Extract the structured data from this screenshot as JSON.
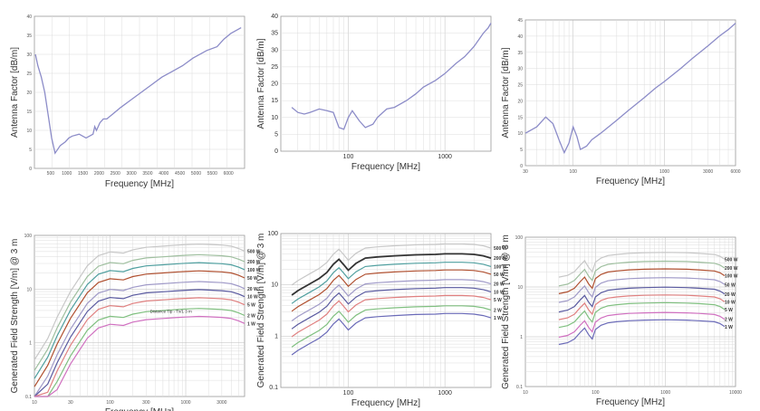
{
  "chart_data": [
    {
      "id": "af1",
      "type": "line",
      "ylabel": "Antenna Factor [dB/m]",
      "xlabel": "Frequency [MHz]",
      "xscale": "linear",
      "xlim": [
        0,
        6100
      ],
      "ylim": [
        0,
        40
      ],
      "yticks": [
        "0",
        "5",
        "10",
        "15",
        "20",
        "25",
        "30",
        "35",
        "40"
      ],
      "xticks": [
        "",
        "500",
        "1000",
        "1500",
        "2000",
        "2500",
        "3000",
        "3500",
        "4000",
        "4500",
        "5000",
        "5500",
        "6000"
      ],
      "grid": true,
      "series": [
        {
          "color": "#8c8cc8",
          "x": [
            30,
            100,
            200,
            300,
            400,
            500,
            600,
            750,
            900,
            1000,
            1100,
            1300,
            1500,
            1700,
            1750,
            1800,
            1900,
            2000,
            2100,
            2300,
            2500,
            2800,
            3100,
            3400,
            3700,
            4000,
            4300,
            4600,
            5000,
            5300,
            5500,
            5700,
            5900,
            6000
          ],
          "y": [
            30,
            27,
            24,
            20,
            14,
            8,
            4,
            6,
            7,
            8,
            8.5,
            9,
            8,
            9,
            11,
            10,
            12,
            13,
            13,
            14.5,
            16,
            18,
            20,
            22,
            24,
            25.5,
            27,
            29,
            31,
            32,
            34,
            35.5,
            36.5,
            37
          ]
        }
      ]
    },
    {
      "id": "af2",
      "type": "line",
      "ylabel": "Antenna Factor [dB/m]",
      "xlabel": "Frequency [MHz]",
      "xscale": "log",
      "xlim": [
        20,
        3000
      ],
      "ylim": [
        0,
        40
      ],
      "yticks": [
        "0",
        "5",
        "10",
        "15",
        "20",
        "25",
        "30",
        "35",
        "40"
      ],
      "xticks": [
        "100",
        "1000"
      ],
      "grid": true,
      "series": [
        {
          "color": "#8c8cc8",
          "x": [
            26,
            30,
            35,
            40,
            50,
            60,
            70,
            80,
            90,
            100,
            110,
            130,
            150,
            180,
            200,
            250,
            300,
            400,
            500,
            600,
            800,
            1000,
            1300,
            1600,
            2000,
            2500,
            2800,
            3000
          ],
          "y": [
            13,
            11.5,
            11,
            11.5,
            12.5,
            12,
            11.5,
            7,
            6.5,
            10,
            12,
            9,
            7,
            8,
            10,
            12.5,
            13,
            15,
            17,
            19,
            21,
            23,
            26,
            28,
            31,
            35,
            36.5,
            38
          ]
        }
      ]
    },
    {
      "id": "af3",
      "type": "line",
      "ylabel": "Antenna Factor [dB/m]",
      "xlabel": "Frequency [MHz]",
      "xscale": "log",
      "xlim": [
        30,
        6000
      ],
      "ylim": [
        0,
        45
      ],
      "yticks": [
        "0",
        "5",
        "10",
        "15",
        "20",
        "25",
        "30",
        "35",
        "40",
        "45"
      ],
      "xticks": [
        "30",
        "100",
        "1000",
        "3000",
        "6000"
      ],
      "grid": true,
      "series": [
        {
          "color": "#8c8cc8",
          "x": [
            30,
            40,
            50,
            60,
            70,
            80,
            90,
            100,
            110,
            120,
            140,
            160,
            200,
            300,
            400,
            600,
            800,
            1000,
            1500,
            2000,
            3000,
            4000,
            5000,
            6000
          ],
          "y": [
            10,
            12,
            15,
            13,
            8,
            4,
            7,
            12,
            9,
            5,
            6,
            8,
            10,
            14,
            17,
            21,
            24,
            26,
            30,
            33,
            37,
            40,
            42,
            44
          ]
        }
      ]
    },
    {
      "id": "fs1",
      "type": "line",
      "ylabel": "Generated Field Strength [V/m] @ 3 m",
      "xlabel": "Frequency [MHz]",
      "xscale": "log",
      "yscale": "log",
      "xlim": [
        10,
        6000
      ],
      "ylim": [
        0.1,
        100
      ],
      "yticks": [
        "0.1",
        "1",
        "10",
        "100"
      ],
      "xticks": [
        "10",
        "30",
        "100",
        "300",
        "1000",
        "3000"
      ],
      "grid": true,
      "annotation": "Distance Tip - Tx/1 3 m",
      "series": [
        {
          "name": "500 W",
          "color": "#c8c8c8",
          "y_mid": 60
        },
        {
          "name": "200 W",
          "color": "#9fbf9f",
          "y_mid": 38
        },
        {
          "name": "100 W",
          "color": "#4f9f9f",
          "y_mid": 27
        },
        {
          "name": "50 W",
          "color": "#b05030",
          "y_mid": 19
        },
        {
          "name": "20 W",
          "color": "#a09ac8",
          "y_mid": 12
        },
        {
          "name": "10 W",
          "color": "#5a5aa0",
          "y_mid": 8.5
        },
        {
          "name": "5 W",
          "color": "#e08080",
          "y_mid": 6
        },
        {
          "name": "2 W",
          "color": "#80c080",
          "y_mid": 3.8
        },
        {
          "name": "1 W",
          "color": "#d070c0",
          "y_mid": 2.7
        }
      ]
    },
    {
      "id": "fs2",
      "type": "line",
      "ylabel": "Generated Field Strength [V/m] @ 3 m",
      "xlabel": "Frequency [MHz]",
      "xscale": "log",
      "yscale": "log",
      "xlim": [
        20,
        3000
      ],
      "ylim": [
        0.1,
        100
      ],
      "yticks": [
        "0.1",
        "1",
        "10",
        "100"
      ],
      "xticks": [
        "100",
        "1000"
      ],
      "grid": true,
      "series": [
        {
          "name": "500 W",
          "color": "#c8c8c8",
          "y_mid": 55
        },
        {
          "name": "200 W",
          "color": "#333333",
          "y_mid": 35
        },
        {
          "name": "100 W",
          "color": "#4f9f9f",
          "y_mid": 24
        },
        {
          "name": "50 W",
          "color": "#b05030",
          "y_mid": 17
        },
        {
          "name": "20 W",
          "color": "#a09ac8",
          "y_mid": 11
        },
        {
          "name": "10 W",
          "color": "#5a5aa0",
          "y_mid": 7.7
        },
        {
          "name": "5 W",
          "color": "#e08080",
          "y_mid": 5.4
        },
        {
          "name": "2 W",
          "color": "#80c080",
          "y_mid": 3.4
        },
        {
          "name": "1 W",
          "color": "#6a6ab8",
          "y_mid": 2.4
        }
      ]
    },
    {
      "id": "fs3",
      "type": "line",
      "ylabel": "Generated Field Strength [V/m] @ 3 m",
      "xlabel": "Frequency [MHz]",
      "xscale": "log",
      "yscale": "log",
      "xlim": [
        10,
        10000
      ],
      "ylim": [
        0.1,
        100
      ],
      "yticks": [
        "0.1",
        "1",
        "10",
        "100"
      ],
      "xticks": [
        "10",
        "100",
        "1000",
        "10000"
      ],
      "grid": true,
      "series": [
        {
          "name": "500 W",
          "color": "#c8c8c8",
          "y_mid": 45
        },
        {
          "name": "200 W",
          "color": "#9fbf9f",
          "y_mid": 30
        },
        {
          "name": "100 W",
          "color": "#b05030",
          "y_mid": 21
        },
        {
          "name": "50 W",
          "color": "#a09ac8",
          "y_mid": 14
        },
        {
          "name": "20 W",
          "color": "#5a5aa0",
          "y_mid": 9
        },
        {
          "name": "10 W",
          "color": "#e08080",
          "y_mid": 6.3
        },
        {
          "name": "5 W",
          "color": "#80c080",
          "y_mid": 4.4
        },
        {
          "name": "2 W",
          "color": "#d070c0",
          "y_mid": 2.8
        },
        {
          "name": "1 W",
          "color": "#6a6ab8",
          "y_mid": 2
        }
      ]
    }
  ]
}
